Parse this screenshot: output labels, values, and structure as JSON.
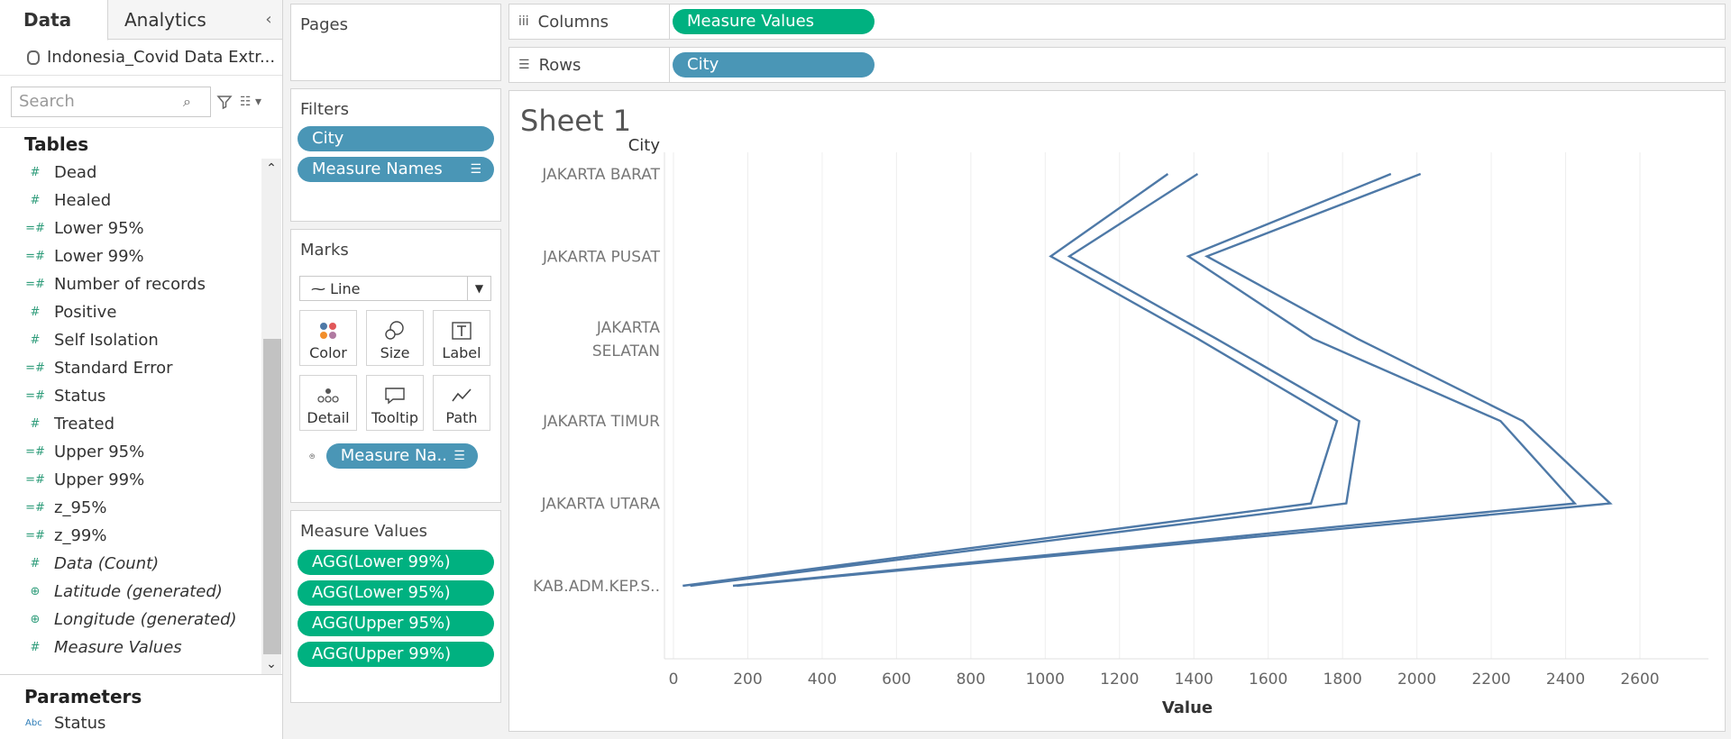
{
  "left_pane": {
    "tabs": [
      {
        "label": "Data"
      },
      {
        "label": "Analytics"
      }
    ],
    "collapse_glyph": "‹",
    "datasource": "Indonesia_Covid Data Extr...",
    "search_placeholder": "Search",
    "tables_heading": "Tables",
    "fields": [
      {
        "label": "Dead",
        "icon": "hash"
      },
      {
        "label": "Healed",
        "icon": "hash"
      },
      {
        "label": "Lower 95%",
        "icon": "calc-hash"
      },
      {
        "label": "Lower 99%",
        "icon": "calc-hash"
      },
      {
        "label": "Number of records",
        "icon": "calc-hash"
      },
      {
        "label": "Positive",
        "icon": "hash"
      },
      {
        "label": "Self Isolation",
        "icon": "hash"
      },
      {
        "label": "Standard Error",
        "icon": "calc-hash"
      },
      {
        "label": "Status",
        "icon": "calc-hash"
      },
      {
        "label": "Treated",
        "icon": "hash"
      },
      {
        "label": "Upper 95%",
        "icon": "calc-hash"
      },
      {
        "label": "Upper 99%",
        "icon": "calc-hash"
      },
      {
        "label": "z_95%",
        "icon": "calc-hash"
      },
      {
        "label": "z_99%",
        "icon": "calc-hash"
      },
      {
        "label": "Data (Count)",
        "icon": "hash",
        "italic": true
      },
      {
        "label": "Latitude (generated)",
        "icon": "globe",
        "italic": true
      },
      {
        "label": "Longitude (generated)",
        "icon": "globe",
        "italic": true
      },
      {
        "label": "Measure Values",
        "icon": "hash",
        "italic": true
      }
    ],
    "parameters_heading": "Parameters",
    "parameters": [
      {
        "label": "Status",
        "icon_text": "Abc"
      }
    ]
  },
  "pages_card": {
    "title": "Pages"
  },
  "filters_card": {
    "title": "Filters",
    "pills": [
      {
        "label": "City"
      },
      {
        "label": "Measure Names"
      }
    ]
  },
  "marks_card": {
    "title": "Marks",
    "mark_type": "Line",
    "buttons": [
      {
        "label": "Color"
      },
      {
        "label": "Size"
      },
      {
        "label": "Label"
      },
      {
        "label": "Detail"
      },
      {
        "label": "Tooltip"
      },
      {
        "label": "Path"
      }
    ],
    "detail_pill": "Measure Na.."
  },
  "measure_values_card": {
    "title": "Measure Values",
    "pills": [
      "AGG(Lower 99%)",
      "AGG(Lower 95%)",
      "AGG(Upper 95%)",
      "AGG(Upper 99%)"
    ]
  },
  "columns_shelf": {
    "label": "Columns",
    "pill": "Measure Values"
  },
  "rows_shelf": {
    "label": "Rows",
    "pill": "City"
  },
  "sheet": {
    "title": "Sheet 1"
  },
  "colors": {
    "line": "#4e79a7",
    "pill_blue": "#4a96b6",
    "pill_green": "#00b180"
  },
  "chart_data": {
    "type": "line",
    "title": "Sheet 1",
    "row_header": "City",
    "xlabel": "Value",
    "xlim": [
      0,
      2600
    ],
    "xticks": [
      0,
      200,
      400,
      600,
      800,
      1000,
      1200,
      1400,
      1600,
      1800,
      2000,
      2200,
      2400,
      2600
    ],
    "categories": [
      "JAKARTA BARAT",
      "JAKARTA PUSAT",
      "JAKARTA SELATAN",
      "JAKARTA TIMUR",
      "JAKARTA UTARA",
      "KAB.ADM.KEP.S.."
    ],
    "category_label_lines": [
      [
        "JAKARTA BARAT"
      ],
      [
        "JAKARTA PUSAT"
      ],
      [
        "JAKARTA",
        "SELATAN"
      ],
      [
        "JAKARTA TIMUR"
      ],
      [
        "JAKARTA UTARA"
      ],
      [
        "KAB.ADM.KEP.S.."
      ]
    ],
    "grid_vertical": true,
    "series": [
      {
        "values": [
          1330,
          1015,
          1410,
          1785,
          1715,
          25
        ]
      },
      {
        "values": [
          1410,
          1065,
          1460,
          1845,
          1810,
          45
        ]
      },
      {
        "values": [
          1930,
          1385,
          1720,
          2225,
          2425,
          160
        ]
      },
      {
        "values": [
          2010,
          1435,
          1840,
          2285,
          2520,
          170
        ]
      }
    ]
  }
}
